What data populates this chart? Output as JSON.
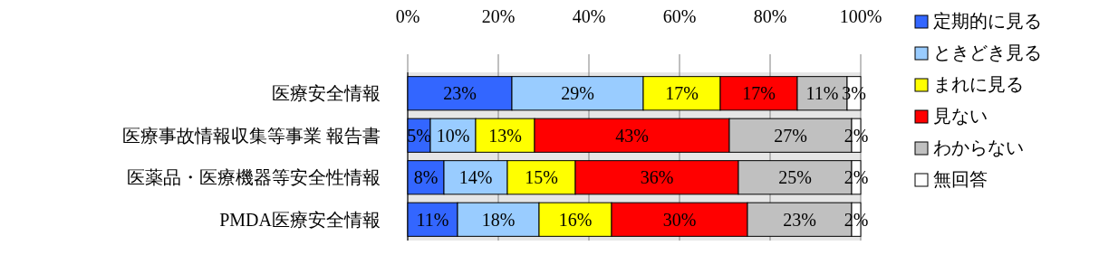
{
  "chart_data": {
    "type": "bar",
    "orientation": "horizontal",
    "stacked": true,
    "grid": "x",
    "legend": "right",
    "categories": [
      "医療安全情報",
      "医療事故情報収集等事業 報告書",
      "医薬品・医療機器等安全性情報",
      "PMDA医療安全情報"
    ],
    "xlim": [
      0,
      100
    ],
    "xticks": [
      {
        "value": 0,
        "label": "0%"
      },
      {
        "value": 20,
        "label": "20%"
      },
      {
        "value": 40,
        "label": "40%"
      },
      {
        "value": 60,
        "label": "60%"
      },
      {
        "value": 80,
        "label": "80%"
      },
      {
        "value": 100,
        "label": "100%"
      }
    ],
    "series": [
      {
        "name": "定期的に見る",
        "color": "#3366ff",
        "values": [
          23,
          5,
          8,
          11
        ],
        "value_labels": [
          "23%",
          "5%",
          "8%",
          "11%"
        ]
      },
      {
        "name": "ときどき見る",
        "color": "#99ccff",
        "values": [
          29,
          10,
          14,
          18
        ],
        "value_labels": [
          "29%",
          "10%",
          "14%",
          "18%"
        ]
      },
      {
        "name": "まれに見る",
        "color": "#ffff00",
        "values": [
          17,
          13,
          15,
          16
        ],
        "value_labels": [
          "17%",
          "13%",
          "15%",
          "16%"
        ]
      },
      {
        "name": "見ない",
        "color": "#ff0000",
        "values": [
          17,
          43,
          36,
          30
        ],
        "value_labels": [
          "17%",
          "43%",
          "36%",
          "30%"
        ]
      },
      {
        "name": "わからない",
        "color": "#c0c0c0",
        "values": [
          11,
          27,
          25,
          23
        ],
        "value_labels": [
          "11%",
          "27%",
          "25%",
          "23%"
        ]
      },
      {
        "name": "無回答",
        "color": "#ffffff",
        "values": [
          3,
          2,
          2,
          2
        ],
        "value_labels": [
          "3%",
          "2%",
          "2%",
          "2%"
        ]
      }
    ]
  }
}
